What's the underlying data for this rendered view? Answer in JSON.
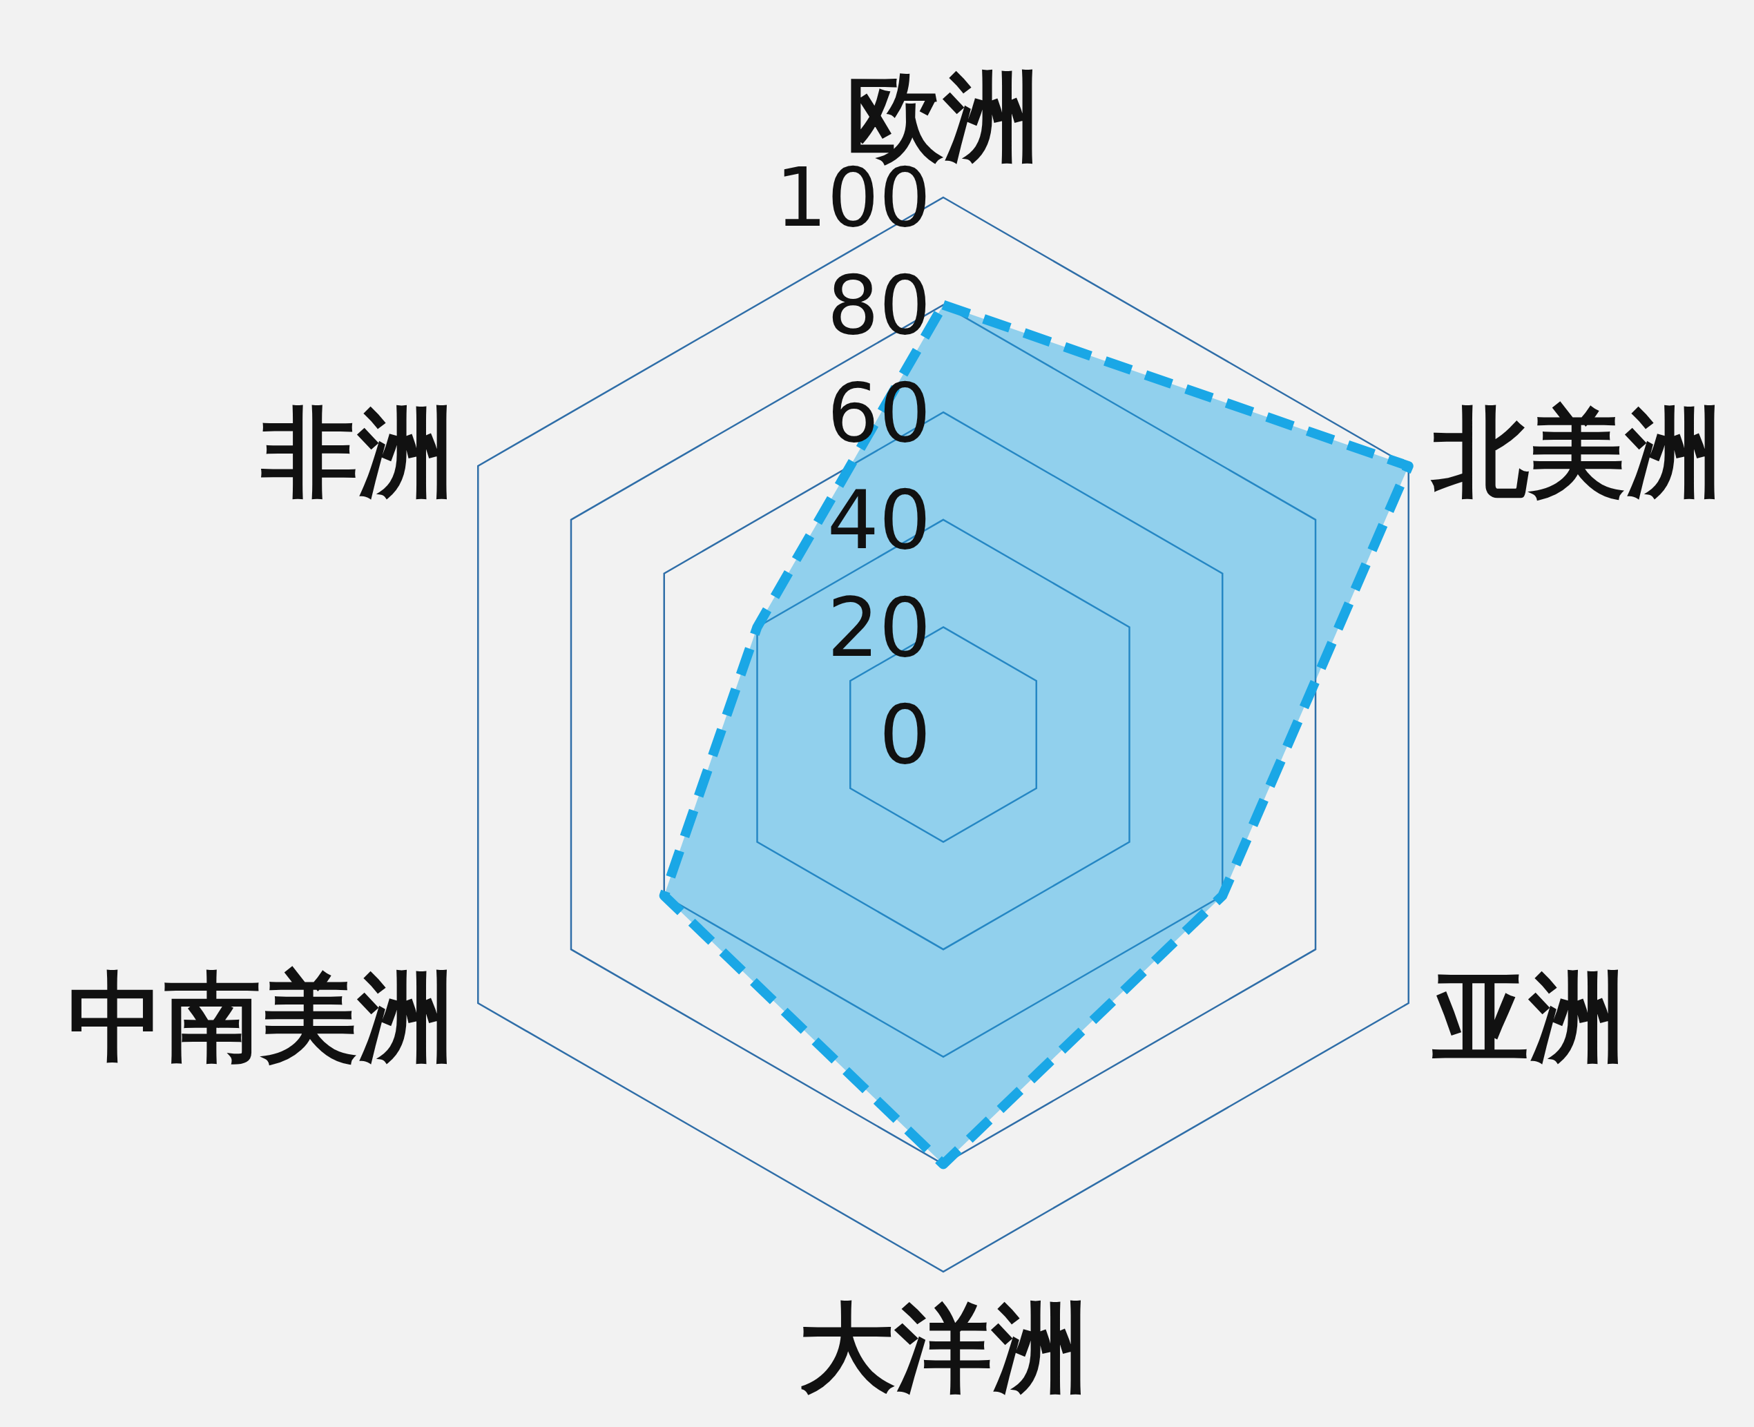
{
  "chart_data": {
    "type": "radar",
    "categories": [
      "欧洲",
      "北美洲",
      "亚洲",
      "大洋洲",
      "中南美洲",
      "非洲"
    ],
    "series": [
      {
        "color": "#1aa7e6",
        "values": [
          80,
          100,
          60,
          80,
          60,
          40
        ]
      }
    ],
    "ylim": [
      0,
      100
    ],
    "yticks": [
      0,
      20,
      40,
      60,
      80,
      100
    ],
    "grid": true,
    "line_style": "dashed",
    "marker": "none"
  }
}
